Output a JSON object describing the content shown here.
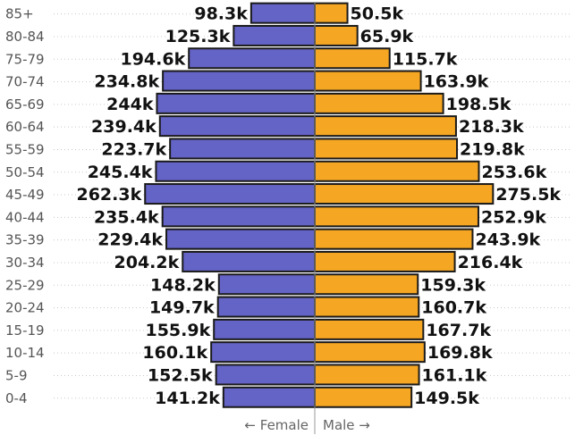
{
  "chart_data": {
    "type": "bar",
    "orientation": "horizontal-population-pyramid",
    "categories": [
      "85+",
      "80-84",
      "75-79",
      "70-74",
      "65-69",
      "60-64",
      "55-59",
      "50-54",
      "45-49",
      "40-44",
      "35-39",
      "30-34",
      "25-29",
      "20-24",
      "15-19",
      "10-14",
      "5-9",
      "0-4"
    ],
    "series": [
      {
        "name": "Female",
        "color": "#6463c6",
        "values": [
          98.3,
          125.3,
          194.6,
          234.8,
          244,
          239.4,
          223.7,
          245.4,
          262.3,
          235.4,
          229.4,
          204.2,
          148.2,
          149.7,
          155.9,
          160.1,
          152.5,
          141.2
        ],
        "labels": [
          "98.3k",
          "125.3k",
          "194.6k",
          "234.8k",
          "244k",
          "239.4k",
          "223.7k",
          "245.4k",
          "262.3k",
          "235.4k",
          "229.4k",
          "204.2k",
          "148.2k",
          "149.7k",
          "155.9k",
          "160.1k",
          "152.5k",
          "141.2k"
        ]
      },
      {
        "name": "Male",
        "color": "#f5a623",
        "values": [
          50.5,
          65.9,
          115.7,
          163.9,
          198.5,
          218.3,
          219.8,
          253.6,
          275.5,
          252.9,
          243.9,
          216.4,
          159.3,
          160.7,
          167.7,
          169.8,
          161.1,
          149.5
        ],
        "labels": [
          "50.5k",
          "65.9k",
          "115.7k",
          "163.9k",
          "198.5k",
          "218.3k",
          "219.8k",
          "253.6k",
          "275.5k",
          "252.9k",
          "243.9k",
          "216.4k",
          "159.3k",
          "160.7k",
          "167.7k",
          "169.8k",
          "161.1k",
          "149.5k"
        ]
      }
    ],
    "x_caption_left": "← Female",
    "x_caption_right": "Male →",
    "grid": false,
    "legend": "none"
  }
}
